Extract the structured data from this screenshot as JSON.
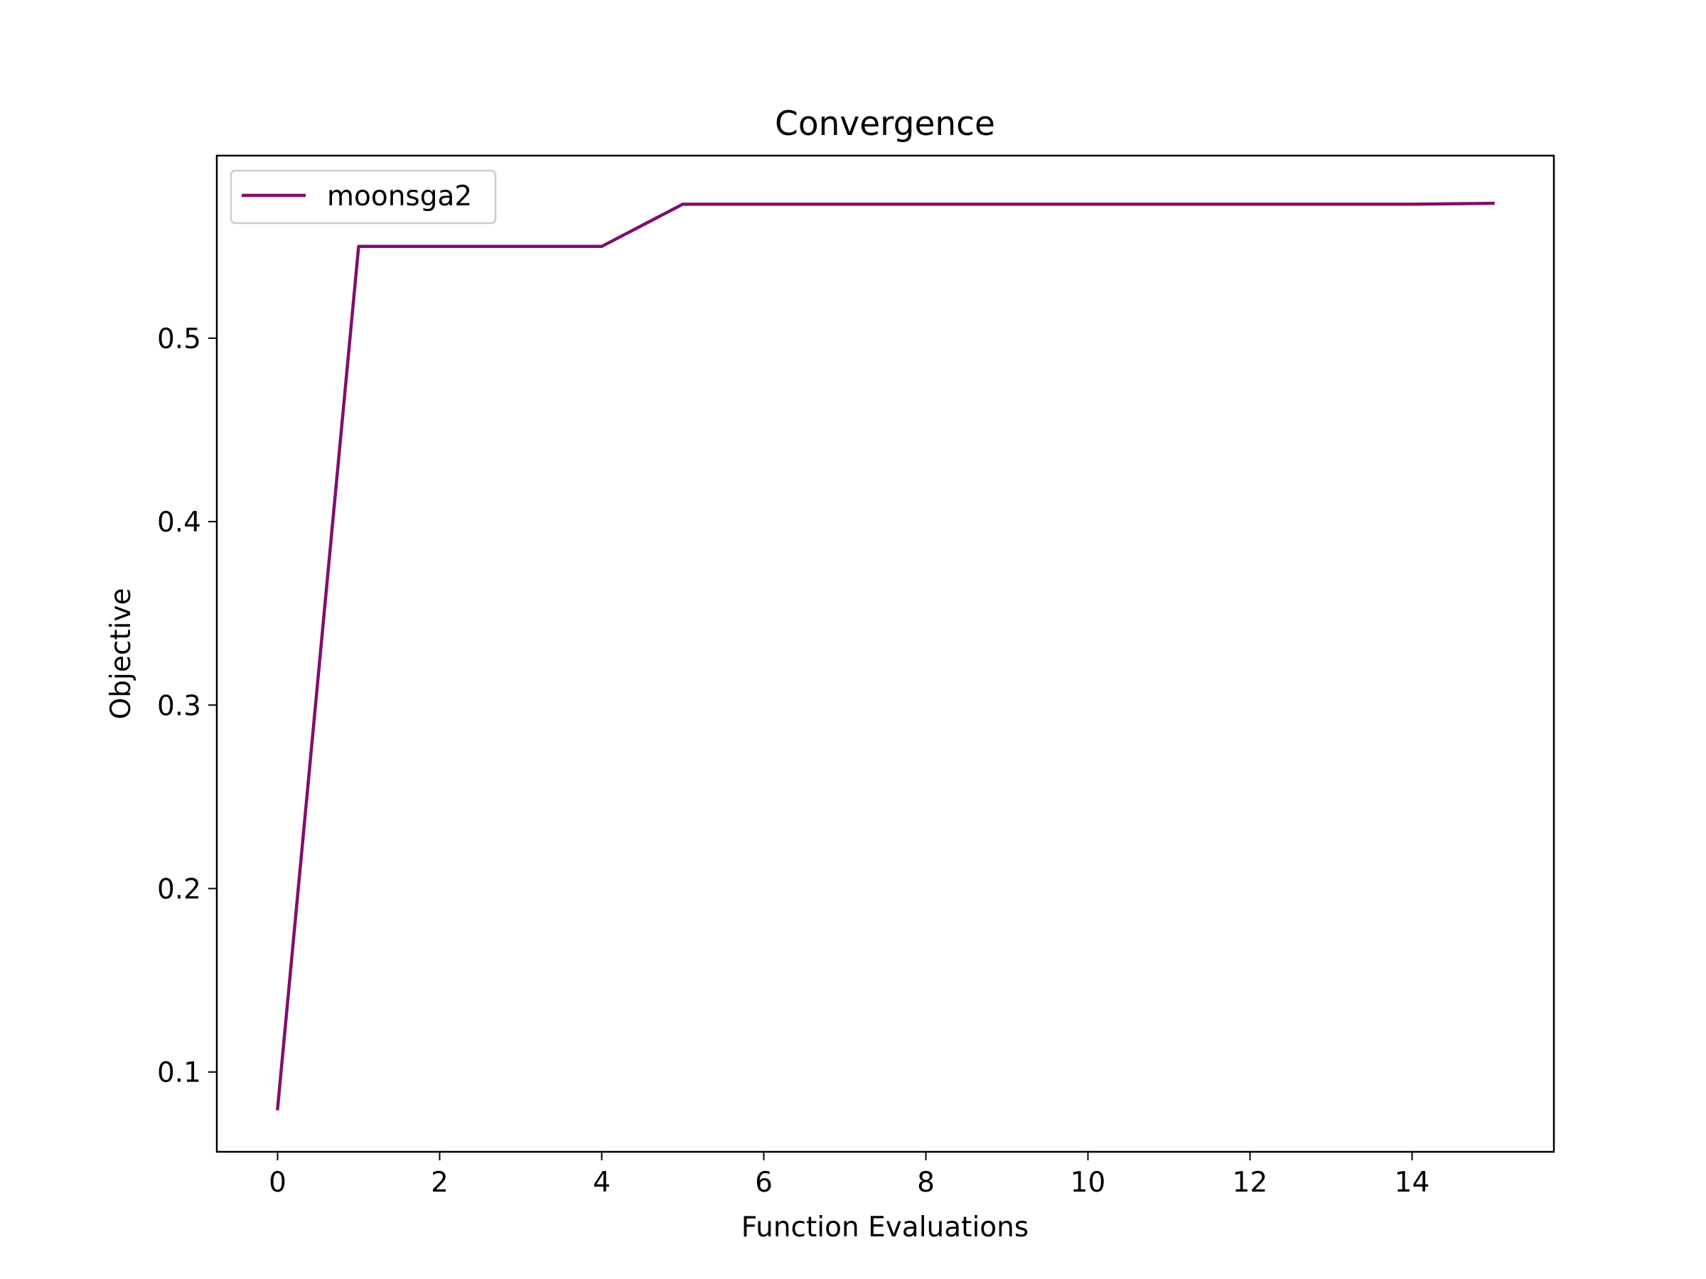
{
  "chart_data": {
    "type": "line",
    "title": "Convergence",
    "xlabel": "Function Evaluations",
    "ylabel": "Objective",
    "xlim": [
      -0.75,
      15.75
    ],
    "ylim": [
      0.0565,
      0.5995
    ],
    "xticks": [
      0,
      2,
      4,
      6,
      8,
      10,
      12,
      14
    ],
    "xtick_labels": [
      "0",
      "2",
      "4",
      "6",
      "8",
      "10",
      "12",
      "14"
    ],
    "yticks": [
      0.1,
      0.2,
      0.3,
      0.4,
      0.5
    ],
    "ytick_labels": [
      "0.1",
      "0.2",
      "0.3",
      "0.4",
      "0.5"
    ],
    "grid": false,
    "legend_position": "upper-left",
    "series": [
      {
        "name": "moonsga2",
        "color": "#800f6f",
        "x": [
          0,
          1,
          2,
          3,
          4,
          5,
          6,
          7,
          8,
          9,
          10,
          11,
          12,
          13,
          14,
          15
        ],
        "y": [
          0.08,
          0.55,
          0.55,
          0.55,
          0.55,
          0.573,
          0.573,
          0.573,
          0.573,
          0.573,
          0.573,
          0.573,
          0.573,
          0.573,
          0.573,
          0.5735
        ]
      }
    ]
  }
}
